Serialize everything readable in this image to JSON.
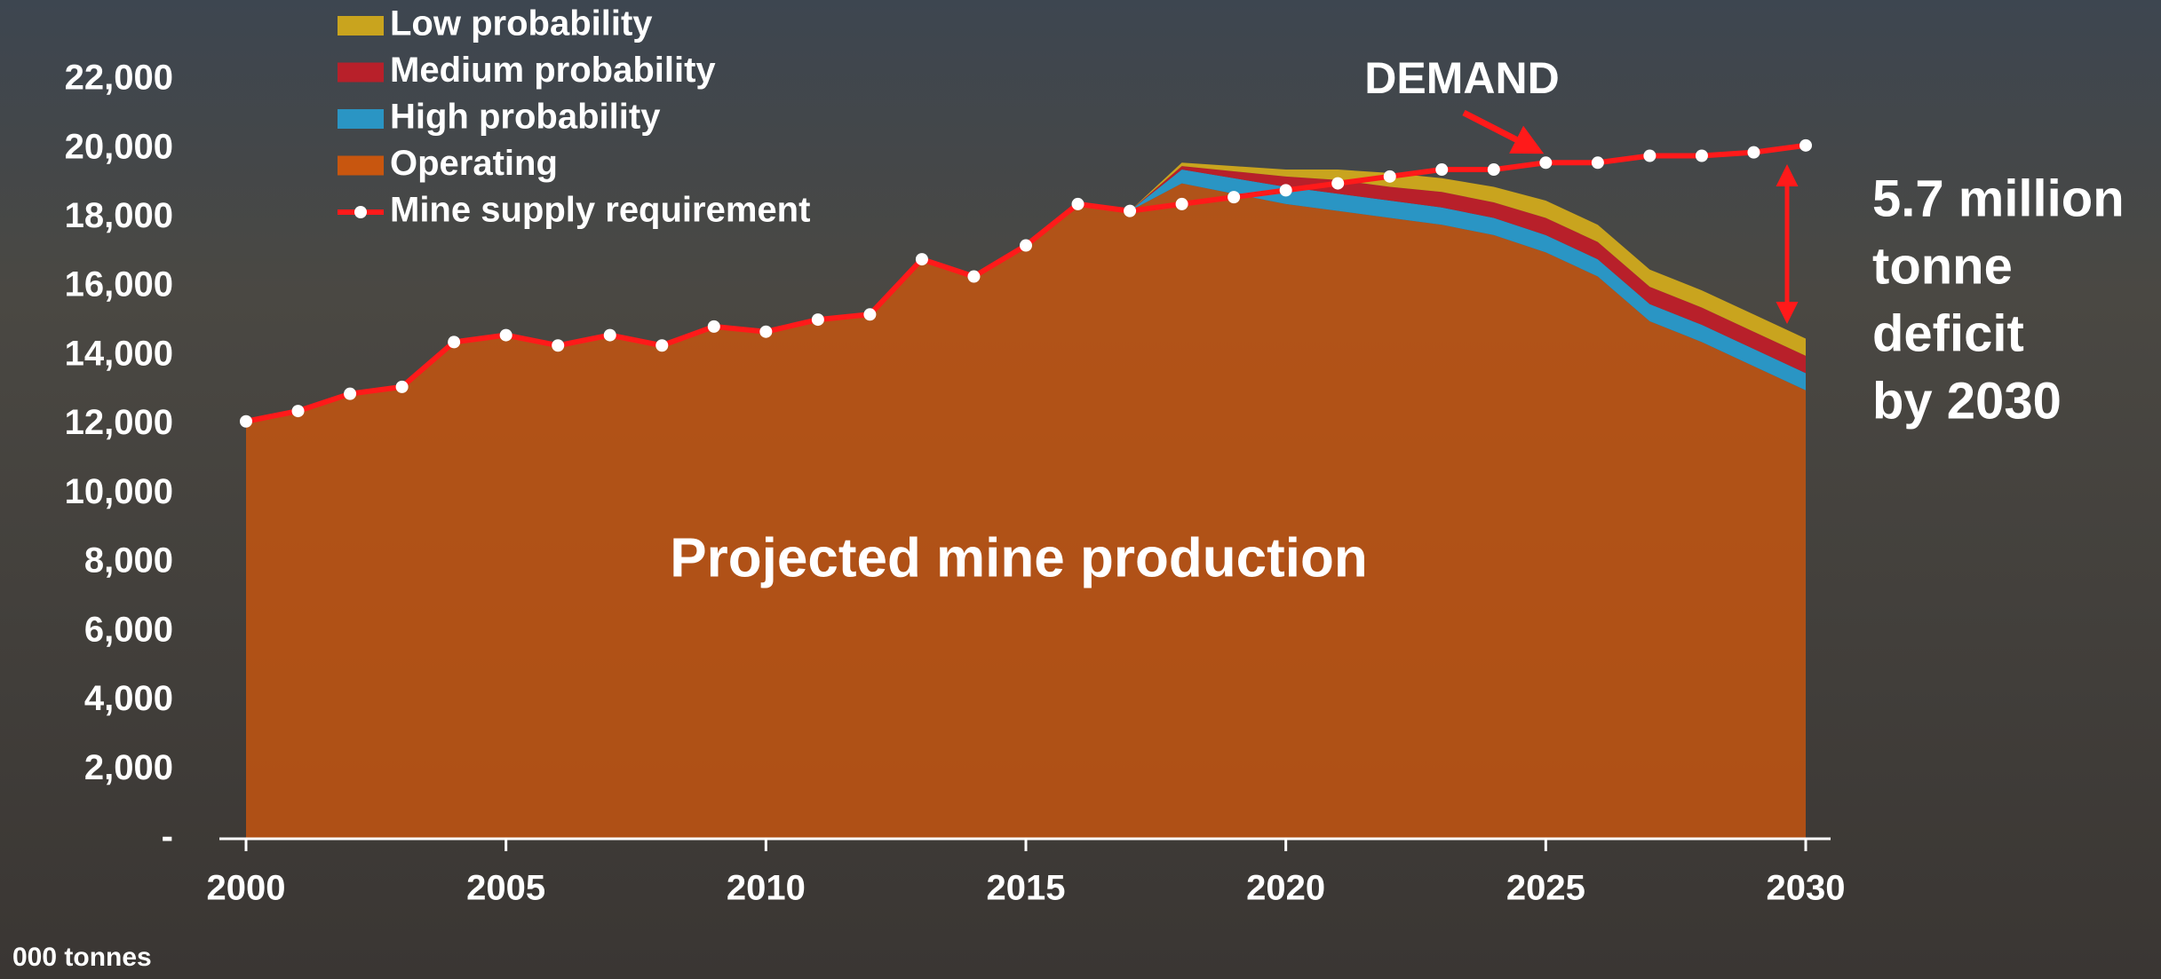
{
  "chart_data": {
    "type": "stacked_area",
    "x": [
      2000,
      2001,
      2002,
      2003,
      2004,
      2005,
      2006,
      2007,
      2008,
      2009,
      2010,
      2011,
      2012,
      2013,
      2014,
      2015,
      2016,
      2017,
      2018,
      2019,
      2020,
      2021,
      2022,
      2023,
      2024,
      2025,
      2026,
      2027,
      2028,
      2029,
      2030
    ],
    "series": [
      {
        "name": "Operating",
        "color": "#c8560f",
        "values": [
          12100,
          12400,
          12900,
          13100,
          14400,
          14600,
          14300,
          14600,
          14300,
          14850,
          14700,
          15050,
          15200,
          16800,
          16300,
          17200,
          18400,
          18200,
          19000,
          18700,
          18400,
          18200,
          18000,
          17800,
          17500,
          17000,
          16300,
          15000,
          14400,
          13700,
          13000
        ]
      },
      {
        "name": "High probability",
        "color": "#2a95c4",
        "values": [
          null,
          null,
          null,
          null,
          null,
          null,
          null,
          null,
          null,
          null,
          null,
          null,
          null,
          null,
          null,
          null,
          null,
          0,
          400,
          450,
          500,
          500,
          500,
          500,
          500,
          500,
          500,
          500,
          500,
          500,
          500
        ]
      },
      {
        "name": "Medium probability",
        "color": "#b8202a",
        "values": [
          null,
          null,
          null,
          null,
          null,
          null,
          null,
          null,
          null,
          null,
          null,
          null,
          null,
          null,
          null,
          null,
          null,
          0,
          100,
          200,
          300,
          400,
          400,
          450,
          450,
          500,
          500,
          500,
          500,
          500,
          500
        ]
      },
      {
        "name": "Low probability",
        "color": "#c9a41e",
        "values": [
          null,
          null,
          null,
          null,
          null,
          null,
          null,
          null,
          null,
          null,
          null,
          null,
          null,
          null,
          null,
          null,
          null,
          0,
          100,
          150,
          200,
          300,
          400,
          400,
          450,
          500,
          500,
          500,
          500,
          500,
          500
        ]
      },
      {
        "name": "Mine supply requirement",
        "type": "line",
        "color": "#ff1a1a",
        "values": [
          12100,
          12400,
          12900,
          13100,
          14400,
          14600,
          14300,
          14600,
          14300,
          14850,
          14700,
          15050,
          15200,
          16800,
          16300,
          17200,
          18400,
          18200,
          18400,
          18600,
          18800,
          19000,
          19200,
          19400,
          19400,
          19600,
          19600,
          19800,
          19800,
          19900,
          20100
        ]
      }
    ],
    "xlim": [
      2000,
      2030
    ],
    "xticks": [
      2000,
      2005,
      2010,
      2015,
      2020,
      2025,
      2030
    ],
    "ylim": [
      0,
      22000
    ],
    "yticks": [
      {
        "value": 0,
        "label": "-"
      },
      {
        "value": 2000,
        "label": "2,000"
      },
      {
        "value": 4000,
        "label": "4,000"
      },
      {
        "value": 6000,
        "label": "6,000"
      },
      {
        "value": 8000,
        "label": "8,000"
      },
      {
        "value": 10000,
        "label": "10,000"
      },
      {
        "value": 12000,
        "label": "12,000"
      },
      {
        "value": 14000,
        "label": "14,000"
      },
      {
        "value": 16000,
        "label": "16,000"
      },
      {
        "value": 18000,
        "label": "18,000"
      },
      {
        "value": 20000,
        "label": "20,000"
      },
      {
        "value": 22000,
        "label": "22,000"
      }
    ],
    "y_axis_label": "000 tonnes",
    "annotations": {
      "demand": "DEMAND",
      "production": "Projected mine production",
      "deficit": [
        "5.7 million",
        "tonne",
        "deficit",
        "by 2030"
      ]
    },
    "legend_order": [
      3,
      2,
      1,
      0,
      4
    ]
  }
}
